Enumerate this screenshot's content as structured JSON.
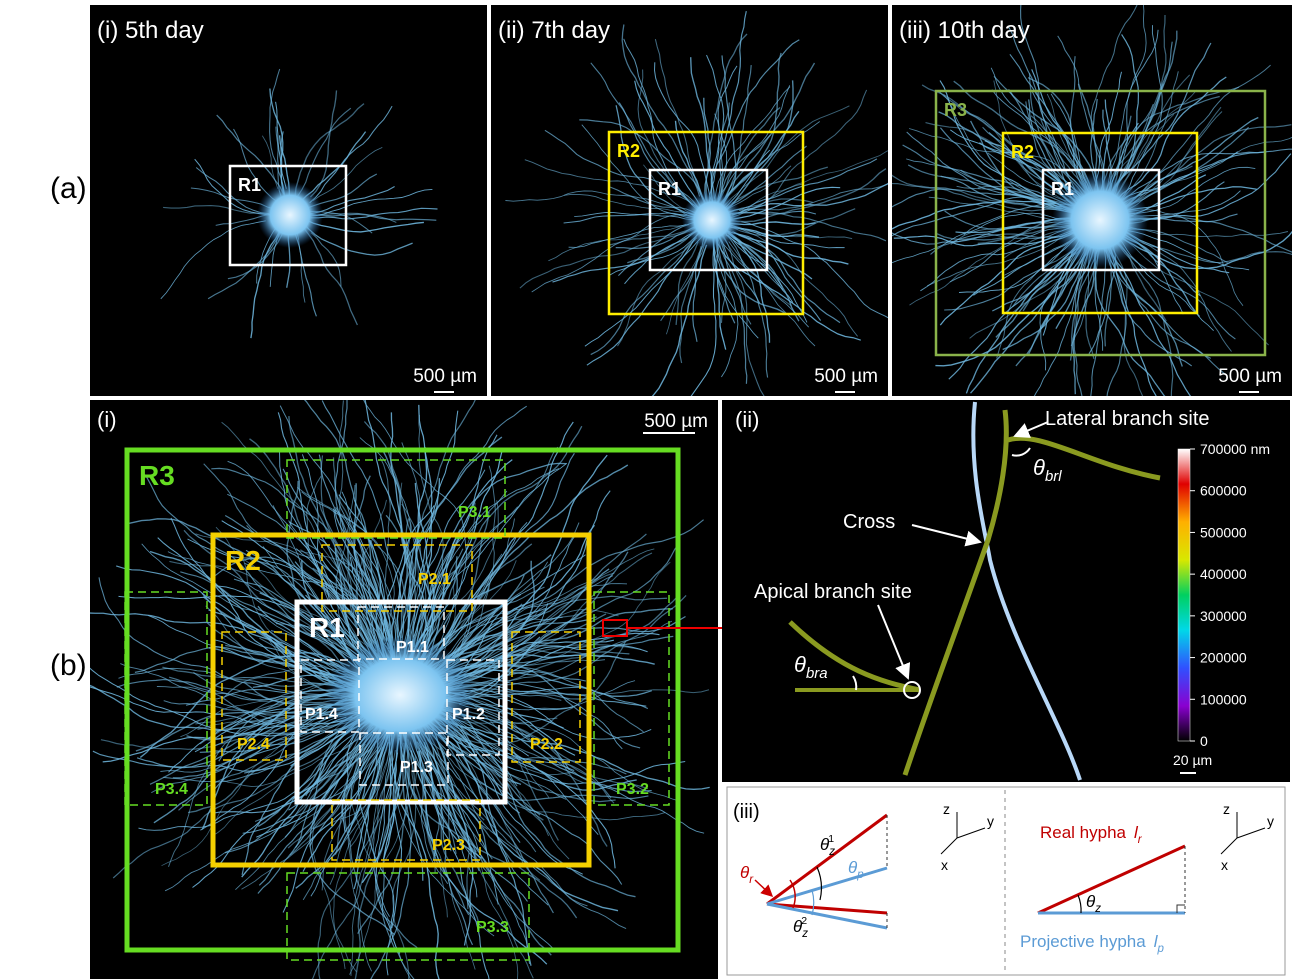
{
  "row_labels": [
    "(a)",
    "(b)"
  ],
  "a_panels": [
    {
      "label": "(i) 5th day",
      "scale_bar": "500 µm",
      "regions": [
        "R1"
      ]
    },
    {
      "label": "(ii) 7th day",
      "scale_bar": "500 µm",
      "regions": [
        "R2",
        "R1"
      ]
    },
    {
      "label": "(iii) 10th day",
      "scale_bar": "500 µm",
      "regions": [
        "R3",
        "R2",
        "R1"
      ]
    }
  ],
  "b_i": {
    "label": "(i)",
    "scale_bar": "500 µm",
    "regions": [
      "R3",
      "R2",
      "R1"
    ],
    "patches": [
      "P3.1",
      "P3.2",
      "P3.3",
      "P3.4",
      "P2.1",
      "P2.2",
      "P2.3",
      "P2.4",
      "P1.1",
      "P1.2",
      "P1.3",
      "P1.4"
    ]
  },
  "b_ii": {
    "label": "(ii)",
    "annotations": [
      "Lateral branch site",
      "Cross",
      "Apical branch site"
    ],
    "angles": [
      {
        "symbol": "θ",
        "sub": "brl"
      },
      {
        "symbol": "θ",
        "sub": "bra"
      }
    ],
    "colorbar": {
      "lim": [
        0,
        700000
      ],
      "ticks": [
        {
          "value": 700000,
          "label": "700000 nm"
        },
        600000,
        500000,
        400000,
        300000,
        200000,
        100000,
        0
      ]
    },
    "scale_bar": "20 µm"
  },
  "b_iii": {
    "label": "(iii)",
    "left_angles": [
      {
        "symbol": "θ",
        "sub": "r"
      },
      {
        "symbol": "θ",
        "sub": "z",
        "sup": "1"
      },
      {
        "symbol": "θ",
        "sub": "p"
      },
      {
        "symbol": "θ",
        "sub": "z",
        "sup": "2"
      }
    ],
    "left_axes": [
      "z",
      "y",
      "x"
    ],
    "right_axes": [
      "z",
      "y",
      "x"
    ],
    "real_hypha": {
      "text": "Real hypha",
      "symbol": "l",
      "sub": "r"
    },
    "projective_hypha": {
      "text": "Projective hypha",
      "symbol": "l",
      "sub": "p"
    },
    "right_angle": {
      "symbol": "θ",
      "sub": "z"
    }
  }
}
